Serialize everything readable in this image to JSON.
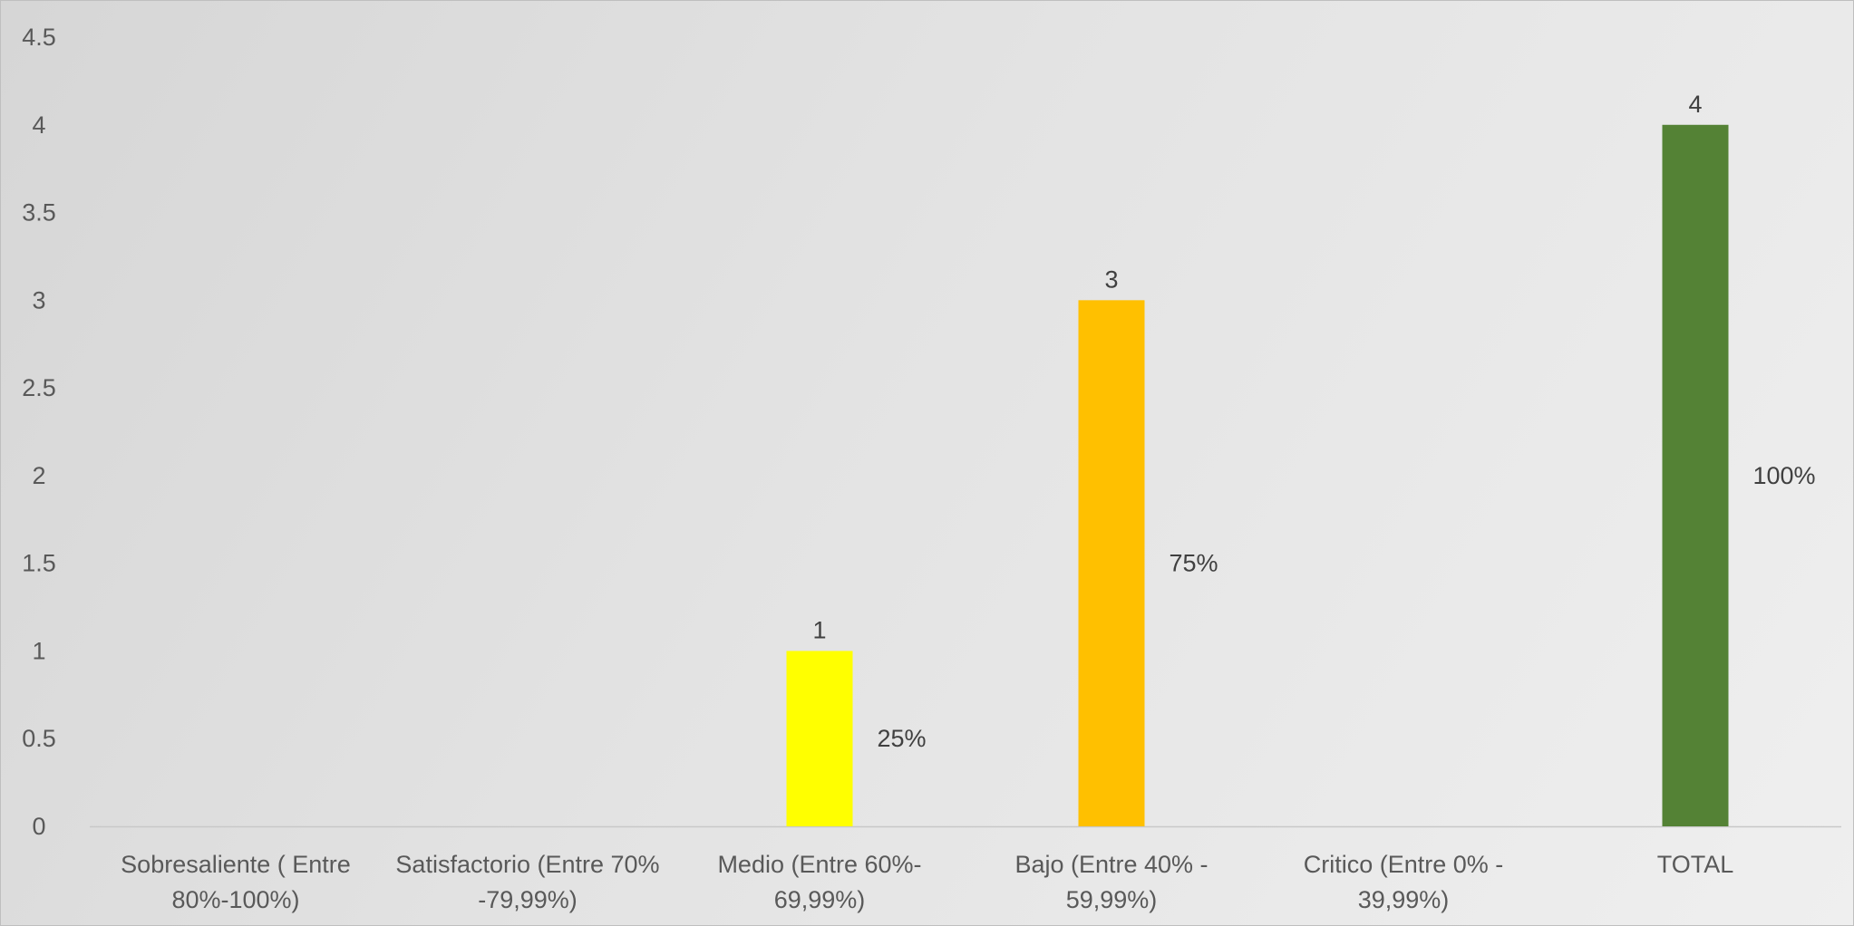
{
  "chart_data": {
    "type": "bar",
    "title": "",
    "xlabel": "",
    "ylabel": "",
    "ylim": [
      0,
      4.5
    ],
    "yticks": [
      0,
      0.5,
      1,
      1.5,
      2,
      2.5,
      3,
      3.5,
      4,
      4.5
    ],
    "grid": false,
    "legend": "none",
    "categories": [
      [
        "Sobresaliente  ( Entre",
        "80%-100%)"
      ],
      [
        "Satisfactorio (Entre 70%",
        "-79,99%)"
      ],
      [
        "Medio (Entre 60%-",
        "69,99%)"
      ],
      [
        "Bajo (Entre 40% -",
        "59,99%)"
      ],
      [
        "Critico (Entre 0% -",
        "39,99%)"
      ],
      [
        "TOTAL"
      ]
    ],
    "values": [
      null,
      null,
      1,
      3,
      null,
      4
    ],
    "value_labels": [
      "",
      "",
      "1",
      "3",
      "",
      "4"
    ],
    "percent_labels": [
      "",
      "",
      "25%",
      "75%",
      "",
      "100%"
    ],
    "colors": [
      "#ffff00",
      "#ffff00",
      "#ffff00",
      "#ffc000",
      "#ffc000",
      "#548235"
    ]
  }
}
